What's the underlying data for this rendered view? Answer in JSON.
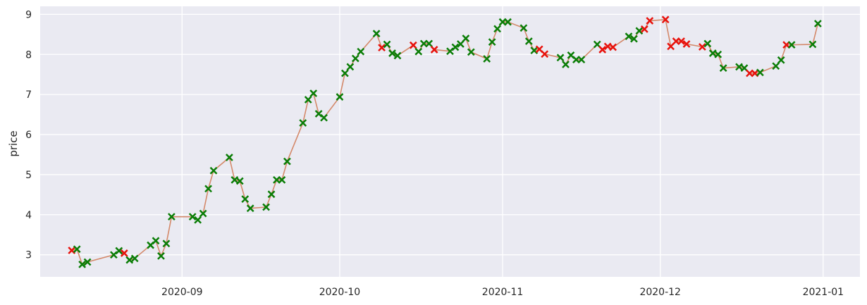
{
  "chart_data": {
    "type": "line",
    "title": "",
    "xlabel": "",
    "ylabel": "price",
    "xlim": [
      "2020-08-05",
      "2021-01-08"
    ],
    "ylim": [
      2.45,
      9.2
    ],
    "x_ticks": [
      "2020-09-01",
      "2020-10-01",
      "2020-11-01",
      "2020-12-01",
      "2021-01-01"
    ],
    "x_tick_labels": [
      "2020-09",
      "2020-10",
      "2020-11",
      "2020-12",
      "2021-01"
    ],
    "y_ticks": [
      3,
      4,
      5,
      6,
      7,
      8,
      9
    ],
    "y_tick_labels": [
      "3",
      "4",
      "5",
      "6",
      "7",
      "8",
      "9"
    ],
    "grid": true,
    "line_color": "#d4896a",
    "series": [
      {
        "marker": "x",
        "values": [
          [
            "2020-08-11",
            3.11,
            "red"
          ],
          [
            "2020-08-12",
            3.14,
            "green"
          ],
          [
            "2020-08-13",
            2.76,
            "green"
          ],
          [
            "2020-08-14",
            2.82,
            "green"
          ],
          [
            "2020-08-19",
            3.0,
            "green"
          ],
          [
            "2020-08-20",
            3.1,
            "green"
          ],
          [
            "2020-08-21",
            3.04,
            "red"
          ],
          [
            "2020-08-22",
            2.87,
            "green"
          ],
          [
            "2020-08-23",
            2.91,
            "green"
          ],
          [
            "2020-08-26",
            3.24,
            "green"
          ],
          [
            "2020-08-27",
            3.35,
            "green"
          ],
          [
            "2020-08-28",
            2.97,
            "green"
          ],
          [
            "2020-08-29",
            3.28,
            "green"
          ],
          [
            "2020-08-30",
            3.95,
            "green"
          ],
          [
            "2020-09-03",
            3.95,
            "green"
          ],
          [
            "2020-09-04",
            3.87,
            "green"
          ],
          [
            "2020-09-05",
            4.03,
            "green"
          ],
          [
            "2020-09-06",
            4.65,
            "green"
          ],
          [
            "2020-09-07",
            5.1,
            "green"
          ],
          [
            "2020-09-10",
            5.43,
            "green"
          ],
          [
            "2020-09-11",
            4.87,
            "green"
          ],
          [
            "2020-09-12",
            4.84,
            "green"
          ],
          [
            "2020-09-13",
            4.39,
            "green"
          ],
          [
            "2020-09-14",
            4.16,
            "green"
          ],
          [
            "2020-09-17",
            4.19,
            "green"
          ],
          [
            "2020-09-18",
            4.51,
            "green"
          ],
          [
            "2020-09-19",
            4.87,
            "green"
          ],
          [
            "2020-09-20",
            4.87,
            "green"
          ],
          [
            "2020-09-21",
            5.33,
            "green"
          ],
          [
            "2020-09-24",
            6.29,
            "green"
          ],
          [
            "2020-09-25",
            6.87,
            "green"
          ],
          [
            "2020-09-26",
            7.03,
            "green"
          ],
          [
            "2020-09-27",
            6.52,
            "green"
          ],
          [
            "2020-09-28",
            6.42,
            "green"
          ],
          [
            "2020-10-01",
            6.94,
            "green"
          ],
          [
            "2020-10-02",
            7.53,
            "green"
          ],
          [
            "2020-10-03",
            7.69,
            "green"
          ],
          [
            "2020-10-04",
            7.9,
            "green"
          ],
          [
            "2020-10-05",
            8.07,
            "green"
          ],
          [
            "2020-10-08",
            8.52,
            "green"
          ],
          [
            "2020-10-09",
            8.17,
            "red"
          ],
          [
            "2020-10-10",
            8.25,
            "green"
          ],
          [
            "2020-10-11",
            8.03,
            "green"
          ],
          [
            "2020-10-12",
            7.97,
            "green"
          ],
          [
            "2020-10-15",
            8.23,
            "red"
          ],
          [
            "2020-10-16",
            8.07,
            "green"
          ],
          [
            "2020-10-17",
            8.27,
            "green"
          ],
          [
            "2020-10-18",
            8.27,
            "green"
          ],
          [
            "2020-10-19",
            8.12,
            "red"
          ],
          [
            "2020-10-22",
            8.08,
            "green"
          ],
          [
            "2020-10-23",
            8.18,
            "green"
          ],
          [
            "2020-10-24",
            8.26,
            "green"
          ],
          [
            "2020-10-25",
            8.4,
            "green"
          ],
          [
            "2020-10-26",
            8.06,
            "green"
          ],
          [
            "2020-10-29",
            7.89,
            "green"
          ],
          [
            "2020-10-30",
            8.31,
            "green"
          ],
          [
            "2020-10-31",
            8.64,
            "green"
          ],
          [
            "2020-11-01",
            8.81,
            "green"
          ],
          [
            "2020-11-02",
            8.81,
            "green"
          ],
          [
            "2020-11-05",
            8.66,
            "green"
          ],
          [
            "2020-11-06",
            8.33,
            "green"
          ],
          [
            "2020-11-07",
            8.1,
            "green"
          ],
          [
            "2020-11-08",
            8.13,
            "red"
          ],
          [
            "2020-11-09",
            8.01,
            "red"
          ],
          [
            "2020-11-12",
            7.92,
            "green"
          ],
          [
            "2020-11-13",
            7.75,
            "green"
          ],
          [
            "2020-11-14",
            7.98,
            "green"
          ],
          [
            "2020-11-15",
            7.87,
            "green"
          ],
          [
            "2020-11-16",
            7.87,
            "green"
          ],
          [
            "2020-11-19",
            8.25,
            "green"
          ],
          [
            "2020-11-20",
            8.12,
            "red"
          ],
          [
            "2020-11-21",
            8.2,
            "red"
          ],
          [
            "2020-11-22",
            8.18,
            "red"
          ],
          [
            "2020-11-25",
            8.45,
            "green"
          ],
          [
            "2020-11-26",
            8.39,
            "green"
          ],
          [
            "2020-11-27",
            8.59,
            "green"
          ],
          [
            "2020-11-28",
            8.63,
            "red"
          ],
          [
            "2020-11-29",
            8.84,
            "red"
          ],
          [
            "2020-12-02",
            8.87,
            "red"
          ],
          [
            "2020-12-03",
            8.2,
            "red"
          ],
          [
            "2020-12-04",
            8.33,
            "red"
          ],
          [
            "2020-12-05",
            8.33,
            "red"
          ],
          [
            "2020-12-06",
            8.26,
            "red"
          ],
          [
            "2020-12-09",
            8.19,
            "red"
          ],
          [
            "2020-12-10",
            8.27,
            "green"
          ],
          [
            "2020-12-11",
            8.03,
            "green"
          ],
          [
            "2020-12-12",
            8.0,
            "green"
          ],
          [
            "2020-12-13",
            7.66,
            "green"
          ],
          [
            "2020-12-16",
            7.69,
            "green"
          ],
          [
            "2020-12-17",
            7.66,
            "green"
          ],
          [
            "2020-12-18",
            7.53,
            "red"
          ],
          [
            "2020-12-19",
            7.53,
            "red"
          ],
          [
            "2020-12-20",
            7.55,
            "green"
          ],
          [
            "2020-12-23",
            7.71,
            "green"
          ],
          [
            "2020-12-24",
            7.86,
            "green"
          ],
          [
            "2020-12-25",
            8.24,
            "red"
          ],
          [
            "2020-12-26",
            8.24,
            "green"
          ],
          [
            "2020-12-30",
            8.25,
            "green"
          ],
          [
            "2020-12-31",
            8.77,
            "green"
          ]
        ]
      }
    ]
  }
}
